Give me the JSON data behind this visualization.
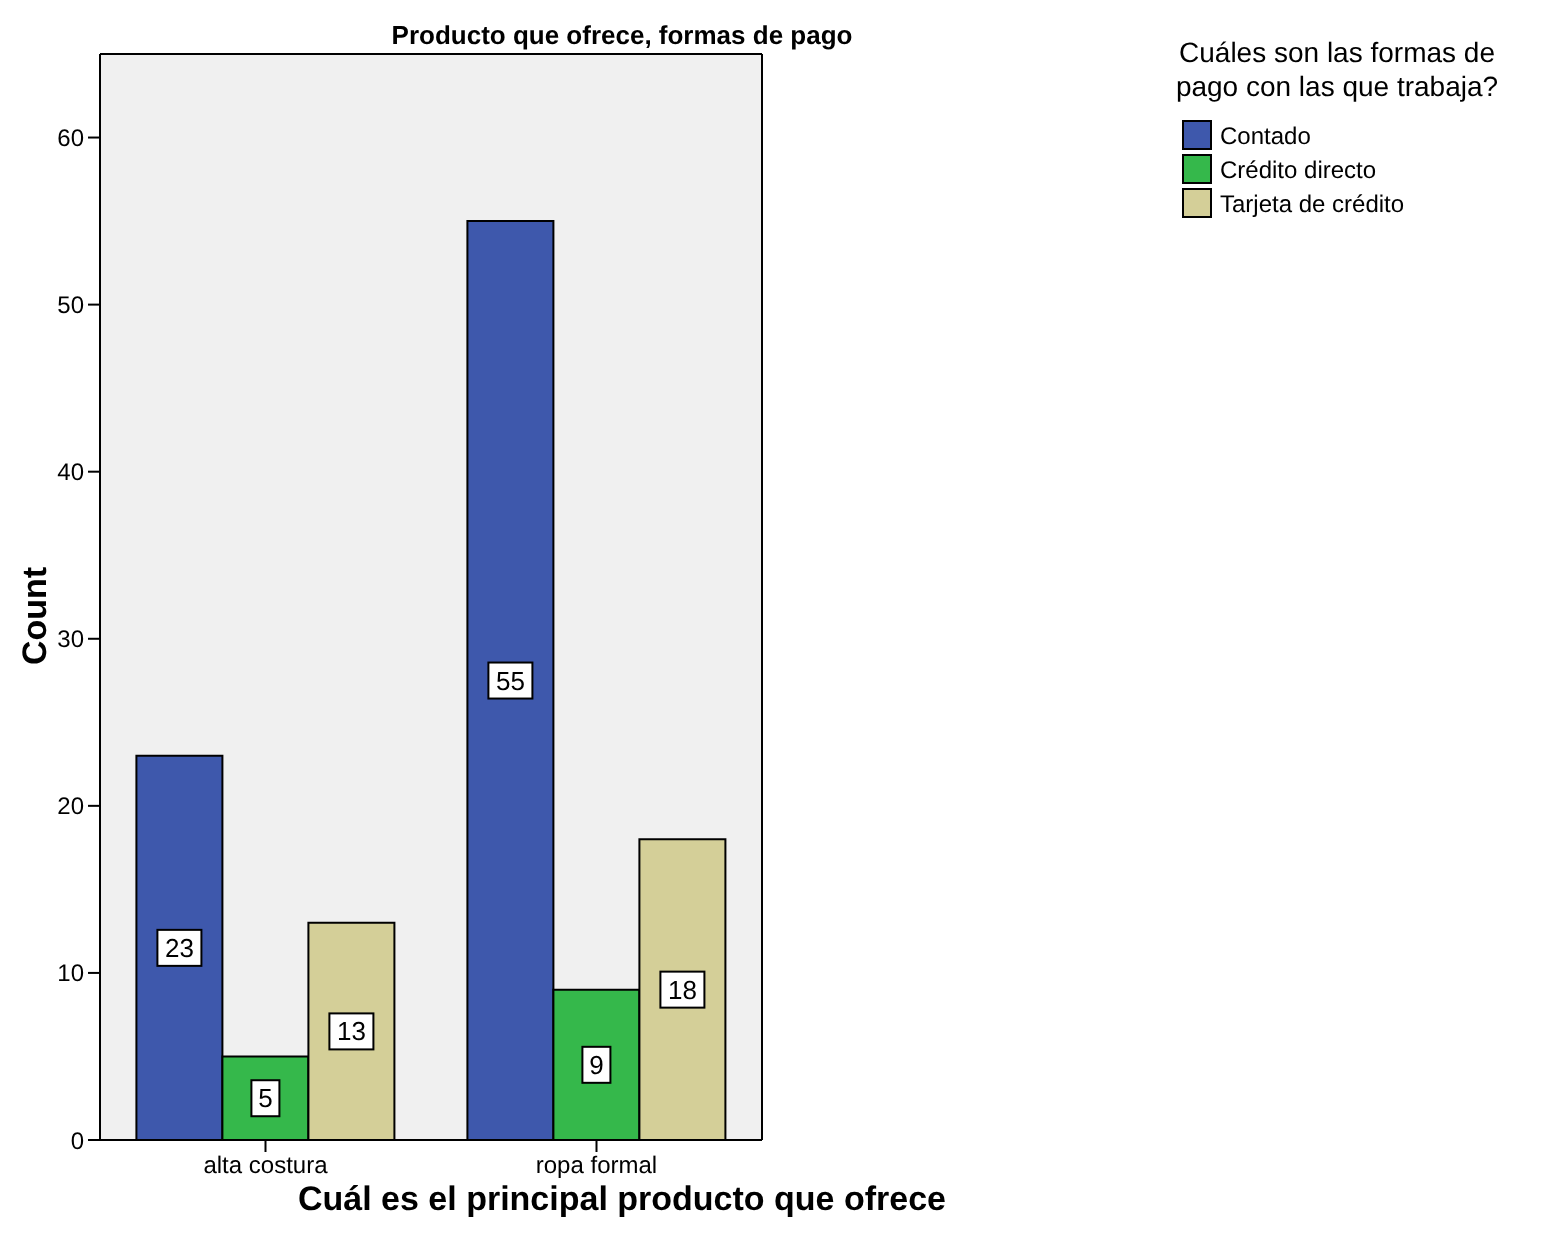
{
  "chart_data": {
    "type": "bar",
    "title": "Producto que ofrece, formas de pago",
    "xlabel": "Cuál es el principal producto que ofrece",
    "ylabel": "Count",
    "legend_title": "Cuáles son las formas de pago con las que trabaja?",
    "categories": [
      "alta costura",
      "ropa formal"
    ],
    "series": [
      {
        "name": "Contado",
        "color": "#3e58ac",
        "values": [
          23,
          55
        ]
      },
      {
        "name": "Crédito directo",
        "color": "#35b84b",
        "values": [
          5,
          9
        ]
      },
      {
        "name": "Tarjeta de crédito",
        "color": "#d4cf98",
        "values": [
          13,
          18
        ]
      }
    ],
    "ylim": [
      0,
      65
    ],
    "yticks": [
      0,
      10,
      20,
      30,
      40,
      50,
      60
    ],
    "data_labels": true,
    "legend": "top right"
  }
}
